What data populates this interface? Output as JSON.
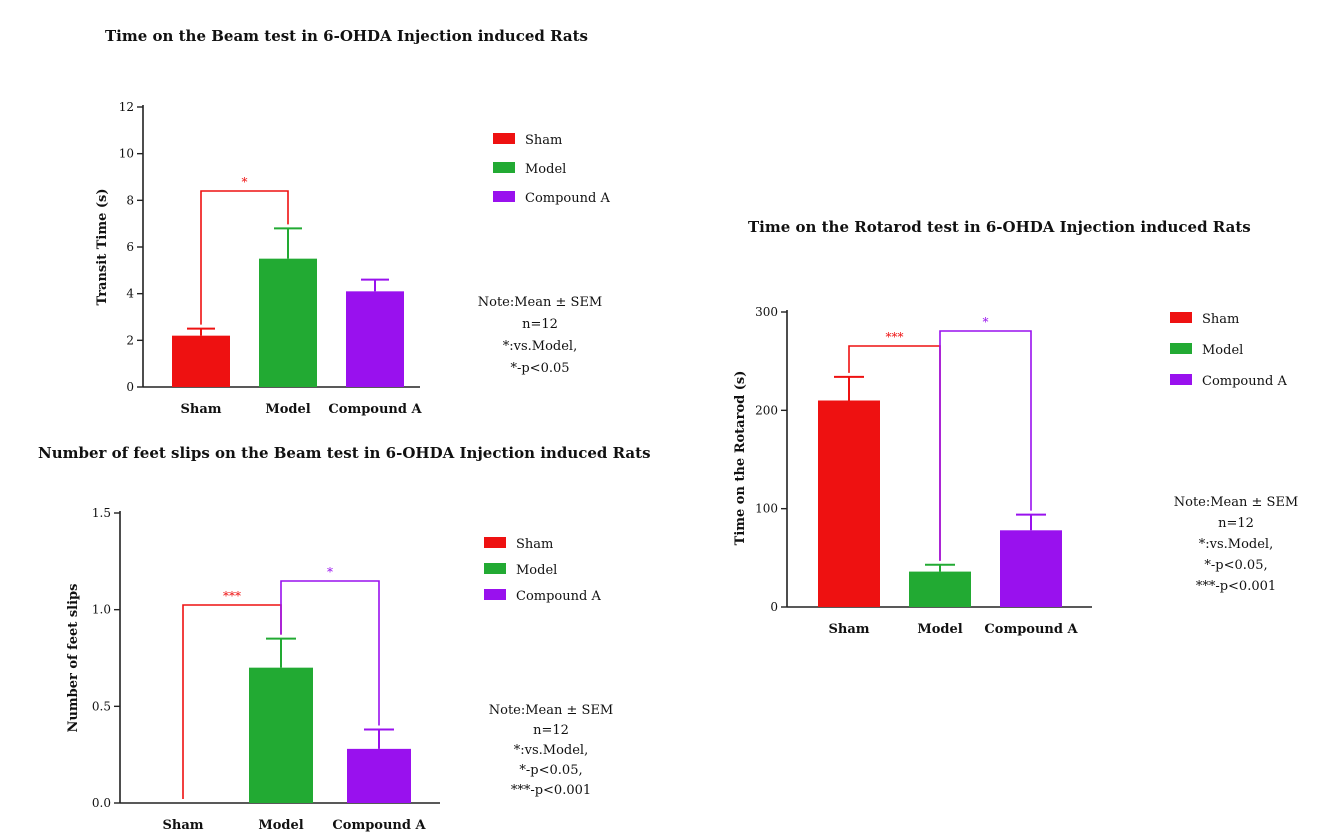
{
  "chart_data": [
    {
      "type": "bar",
      "title": "Time on the Beam test in 6-OHDA Injection induced Rats",
      "xlabel": "",
      "ylabel": "Transit Time (s)",
      "ylim": [
        0,
        12
      ],
      "yticks": [
        "0",
        "2",
        "4",
        "6",
        "8",
        "10",
        "12"
      ],
      "categories": [
        "Sham",
        "Model",
        "Compound A"
      ],
      "values": [
        2.2,
        5.5,
        4.1
      ],
      "errors": [
        0.3,
        1.3,
        0.5
      ],
      "colors": [
        "#ee1111",
        "#22aa33",
        "#9911ee"
      ],
      "legend": [
        "Sham",
        "Model",
        "Compound A"
      ],
      "significance": [
        {
          "from": "Sham",
          "to": "Model",
          "label": "*",
          "color": "#ee1111"
        }
      ],
      "note": [
        "Note:Mean ± SEM",
        "n=12",
        "*:vs.Model,",
        "*-p<0.05"
      ]
    },
    {
      "type": "bar",
      "title": "Number of feet slips on the Beam test in 6-OHDA Injection induced Rats",
      "xlabel": "",
      "ylabel": "Number of feet slips",
      "ylim": [
        0,
        1.5
      ],
      "yticks": [
        "0.0",
        "0.5",
        "1.0",
        "1.5"
      ],
      "categories": [
        "Sham",
        "Model",
        "Compound A"
      ],
      "values": [
        0.0,
        0.7,
        0.28
      ],
      "errors": [
        0.0,
        0.15,
        0.1
      ],
      "colors": [
        "#ee1111",
        "#22aa33",
        "#9911ee"
      ],
      "legend": [
        "Sham",
        "Model",
        "Compound A"
      ],
      "significance": [
        {
          "from": "Sham",
          "to": "Model",
          "label": "***",
          "color": "#ee1111"
        },
        {
          "from": "Model",
          "to": "Compound A",
          "label": "*",
          "color": "#9911ee"
        }
      ],
      "note": [
        "Note:Mean ± SEM",
        "n=12",
        "*:vs.Model,",
        "*-p<0.05,",
        "***-p<0.001"
      ]
    },
    {
      "type": "bar",
      "title": "Time on the Rotarod test in 6-OHDA Injection induced Rats",
      "xlabel": "",
      "ylabel": "Time on the Rotarod (s)",
      "ylim": [
        0,
        300
      ],
      "yticks": [
        "0",
        "100",
        "200",
        "300"
      ],
      "categories": [
        "Sham",
        "Model",
        "Compound A"
      ],
      "values": [
        210,
        36,
        78
      ],
      "errors": [
        24,
        7,
        16
      ],
      "colors": [
        "#ee1111",
        "#22aa33",
        "#9911ee"
      ],
      "legend": [
        "Sham",
        "Model",
        "Compound A"
      ],
      "significance": [
        {
          "from": "Sham",
          "to": "Model",
          "label": "***",
          "color": "#ee1111"
        },
        {
          "from": "Model",
          "to": "Compound A",
          "label": "*",
          "color": "#9911ee"
        }
      ],
      "note": [
        "Note:Mean ± SEM",
        "n=12",
        "*:vs.Model,",
        "*-p<0.05,",
        "***-p<0.001"
      ]
    }
  ]
}
